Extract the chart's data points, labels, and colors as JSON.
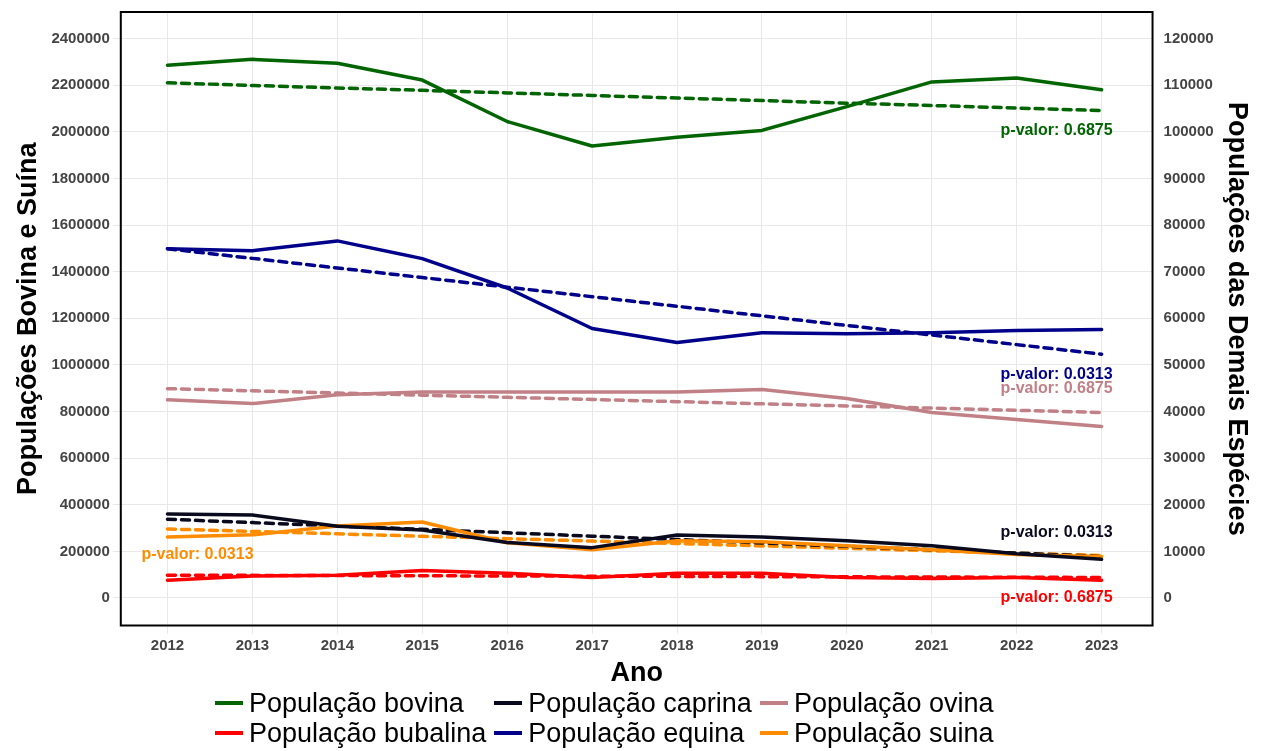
{
  "chart_data": {
    "type": "line",
    "xlabel": "Ano",
    "ylabel": "Populações Bovina e Suína",
    "y2label": "Populações das Demais Espécies",
    "x": [
      2012,
      2013,
      2014,
      2015,
      2016,
      2017,
      2018,
      2019,
      2020,
      2021,
      2022,
      2023
    ],
    "xlim": [
      2011.45,
      2023.6
    ],
    "xticks": [
      2012,
      2013,
      2014,
      2015,
      2016,
      2017,
      2018,
      2019,
      2020,
      2021,
      2022,
      2023
    ],
    "ylim": [
      -118500,
      2514000
    ],
    "yticks": [
      0,
      200000,
      400000,
      600000,
      800000,
      1000000,
      1200000,
      1400000,
      1600000,
      1800000,
      2000000,
      2200000,
      2400000
    ],
    "y2lim": [
      -5925,
      125700
    ],
    "y2ticks": [
      0,
      10000,
      20000,
      30000,
      40000,
      50000,
      60000,
      70000,
      80000,
      90000,
      100000,
      110000,
      120000
    ],
    "grid": true,
    "legend": "bottom",
    "marker": "none",
    "line_style": "solid",
    "series": [
      {
        "name": "População bovina",
        "color": "#006400",
        "values": [
          2286000,
          2311000,
          2294000,
          2222000,
          2044000,
          1939000,
          1977000,
          2006000,
          2108000,
          2214000,
          2231000,
          2180000
        ]
      },
      {
        "name": "População bubalina",
        "color": "#ff0000",
        "axis": "y2",
        "values": [
          3800,
          4700,
          4900,
          5900,
          5300,
          4400,
          5300,
          5300,
          4400,
          4200,
          4400,
          3800
        ]
      },
      {
        "name": "População caprina",
        "color": "#0a0a1e",
        "axis": "y2",
        "values": [
          18000,
          17800,
          15400,
          14600,
          11900,
          10800,
          13500,
          13100,
          12300,
          11200,
          9500,
          8300
        ]
      },
      {
        "name": "População equina",
        "color": "#00008b",
        "axis": "y2",
        "values": [
          74900,
          74500,
          76600,
          72800,
          66500,
          57800,
          54800,
          56900,
          56700,
          56900,
          57400,
          57600
        ]
      },
      {
        "name": "População ovina",
        "color": "#c17f86",
        "axis": "y2",
        "values": [
          42500,
          41700,
          43600,
          44200,
          44200,
          44200,
          44200,
          44700,
          42800,
          39800,
          38300,
          36800
        ]
      },
      {
        "name": "População suina",
        "color": "#ff8c00",
        "values": [
          262000,
          271000,
          309000,
          326000,
          237000,
          207000,
          246000,
          241000,
          224000,
          207000,
          186000,
          178000
        ]
      },
      {
        "color": "#006400",
        "line_style": "dashed",
        "values": [
          2210000,
          2199000,
          2188000,
          2178000,
          2167000,
          2156000,
          2145000,
          2134000,
          2123000,
          2113000,
          2102000,
          2091000
        ]
      },
      {
        "color": "#ff0000",
        "axis": "y2",
        "line_style": "dashed",
        "values": [
          4900,
          4850,
          4810,
          4760,
          4720,
          4670,
          4630,
          4580,
          4540,
          4490,
          4450,
          4400
        ]
      },
      {
        "color": "#0a0a1e",
        "axis": "y2",
        "line_style": "dashed",
        "values": [
          16900,
          16170,
          15450,
          14720,
          13990,
          13260,
          12540,
          11810,
          11080,
          10360,
          9630,
          8900
        ]
      },
      {
        "color": "#00008b",
        "axis": "y2",
        "line_style": "dashed",
        "values": [
          74900,
          72850,
          70790,
          68740,
          66680,
          64630,
          62570,
          60520,
          58460,
          56410,
          54350,
          52300
        ]
      },
      {
        "color": "#c17f86",
        "axis": "y2",
        "line_style": "dashed",
        "values": [
          44900,
          44440,
          43970,
          43510,
          43050,
          42580,
          42120,
          41650,
          41190,
          40730,
          40260,
          39800
        ]
      },
      {
        "color": "#ff8c00",
        "line_style": "dashed",
        "values": [
          296000,
          285600,
          275300,
          264900,
          254500,
          244200,
          233800,
          223500,
          213100,
          202700,
          192400,
          182000
        ]
      }
    ],
    "annotations": [
      "p-valor: 0.6875",
      "p-valor: 0.6875",
      "p-valor: 0.0313",
      "p-valor: 0.0313",
      "p-valor: 0.6875",
      "p-valor: 0.0313"
    ]
  }
}
